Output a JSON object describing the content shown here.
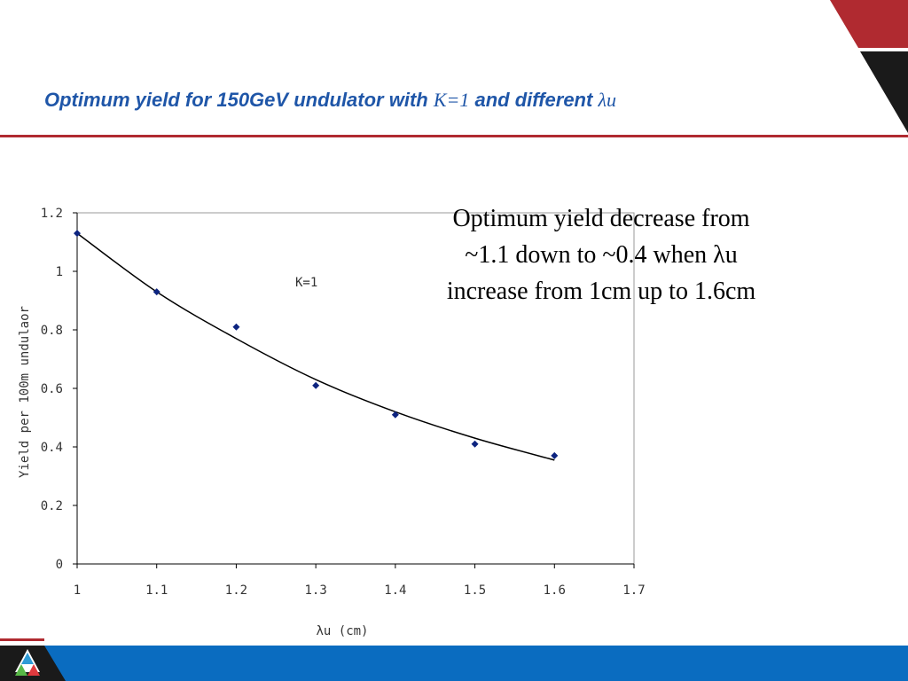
{
  "slide": {
    "title_prefix": "Optimum yield for 150GeV undulator with ",
    "title_k": "K=1",
    "title_mid": " and different ",
    "title_lambda": "λu",
    "note_lines": [
      "Optimum yield decrease from",
      "~1.1 down to ~0.4 when λu",
      "increase from 1cm up to 1.6cm"
    ]
  },
  "colors": {
    "accent_red": "#b02a30",
    "dark": "#1a1a1a",
    "footer_blue": "#0a6cc0",
    "title_blue": "#1f56a8",
    "marker": "#0d2480"
  },
  "icons": {
    "logo": "argonne-tri-color-logo"
  },
  "chart_data": {
    "type": "scatter",
    "x": [
      1.0,
      1.1,
      1.2,
      1.3,
      1.4,
      1.5,
      1.6
    ],
    "y": [
      1.13,
      0.93,
      0.81,
      0.61,
      0.51,
      0.41,
      0.37
    ],
    "trendline_y": [
      1.13,
      0.93,
      0.77,
      0.63,
      0.52,
      0.43,
      0.355
    ],
    "annotation": "K=1",
    "xlabel": "λu (cm)",
    "ylabel": "Yield per 100m undulaor",
    "xlim": [
      1.0,
      1.7
    ],
    "ylim": [
      0,
      1.2
    ],
    "xticks": [
      "1",
      "1.1",
      "1.2",
      "1.3",
      "1.4",
      "1.5",
      "1.6",
      "1.7"
    ],
    "yticks": [
      "0",
      "0.2",
      "0.4",
      "0.6",
      "0.8",
      "1",
      "1.2"
    ],
    "grid": false
  }
}
